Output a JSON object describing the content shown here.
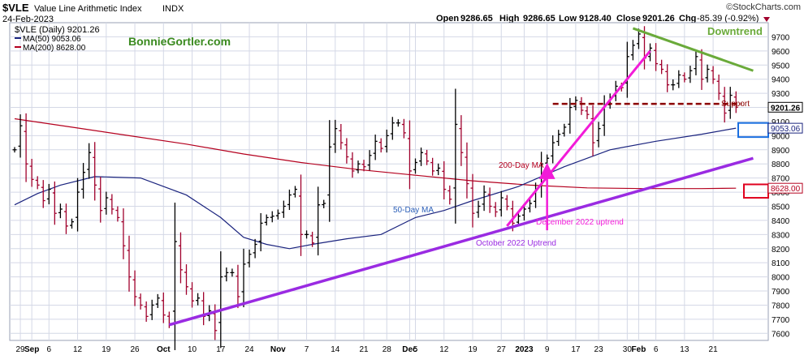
{
  "header": {
    "symbol": "$VLE",
    "name": "Value Line Arithmetic Index",
    "exchange": "INDX",
    "date": "24-Feb-2023",
    "brand": "©StockCharts.com",
    "ohlc": {
      "open_label": "Open",
      "open": "9286.65",
      "high_label": "High",
      "high": "9286.65",
      "low_label": "Low",
      "low": "9128.40",
      "close_label": "Close",
      "close": "9201.26",
      "chg_label": "Chg",
      "chg": "-85.39 (-0.92%)"
    }
  },
  "legend": {
    "price": "$VLE (Daily) 9201.26",
    "ma50": "MA(50) 9053.06",
    "ma200": "MA(200) 8628.00"
  },
  "watermark": "BonnieGortler.com",
  "annotations": {
    "downtrend": "Downtrend",
    "support": "Support",
    "ma200": "200-Day MA",
    "ma50": "50-Day MA",
    "dec_uptrend": "December 2022 uptrend",
    "oct_uptrend": "October 2022 Uptrend"
  },
  "price_tags": {
    "close": "9201.26",
    "ma50": "9053.06",
    "ma200": "8628.00"
  },
  "colors": {
    "background": "#ffffff",
    "grid": "#d4d8e6",
    "bar_up": "#000000",
    "bar_down": "#a0002c",
    "ma50": "#1a237e",
    "ma200": "#b4001e",
    "uptrend_oct": "#9a2be2",
    "uptrend_dec": "#f21bd8",
    "downtrend": "#6aaa3a",
    "support": "#8b0000",
    "watermark": "#3a8a1f",
    "box_blue": "#1a6fe0",
    "box_red": "#e0001e"
  },
  "chart_data": {
    "type": "ohlc",
    "y_axis": {
      "min": 7550,
      "max": 9800,
      "side": "right",
      "ticks": [
        "7600",
        "7700",
        "7800",
        "7900",
        "8000",
        "8100",
        "8200",
        "8300",
        "8400",
        "8500",
        "8600",
        "8700",
        "8800",
        "8900",
        "9000",
        "9100",
        "9200",
        "9300",
        "9400",
        "9500",
        "9600",
        "9700"
      ]
    },
    "x_axis": {
      "tick_labels": [
        {
          "label": "29",
          "bar": 1
        },
        {
          "label": "Sep",
          "bar": 3
        },
        {
          "label": "6",
          "bar": 6
        },
        {
          "label": "12",
          "bar": 11
        },
        {
          "label": "19",
          "bar": 16
        },
        {
          "label": "26",
          "bar": 21
        },
        {
          "label": "Oct",
          "bar": 26
        },
        {
          "label": "10",
          "bar": 31
        },
        {
          "label": "17",
          "bar": 36
        },
        {
          "label": "24",
          "bar": 41
        },
        {
          "label": "Nov",
          "bar": 46
        },
        {
          "label": "7",
          "bar": 51
        },
        {
          "label": "14",
          "bar": 56
        },
        {
          "label": "21",
          "bar": 61
        },
        {
          "label": "28",
          "bar": 65
        },
        {
          "label": "Dec",
          "bar": 69
        },
        {
          "label": "5",
          "bar": 70
        },
        {
          "label": "12",
          "bar": 75
        },
        {
          "label": "19",
          "bar": 80
        },
        {
          "label": "27",
          "bar": 85
        },
        {
          "label": "2023",
          "bar": 89
        },
        {
          "label": "9",
          "bar": 93
        },
        {
          "label": "17",
          "bar": 98
        },
        {
          "label": "23",
          "bar": 102
        },
        {
          "label": "30",
          "bar": 107
        },
        {
          "label": "Feb",
          "bar": 109
        },
        {
          "label": "6",
          "bar": 112
        },
        {
          "label": "13",
          "bar": 117
        },
        {
          "label": "21",
          "bar": 122
        }
      ]
    },
    "closes": [
      8900,
      9070,
      8800,
      8690,
      8650,
      8540,
      8620,
      8450,
      8480,
      8360,
      8390,
      8600,
      8740,
      8880,
      8650,
      8470,
      8560,
      8480,
      8420,
      8220,
      8000,
      7860,
      7800,
      7720,
      7800,
      7850,
      7730,
      7670,
      8250,
      8050,
      7930,
      7830,
      7850,
      7720,
      7760,
      7620,
      8000,
      8030,
      8030,
      7860,
      8090,
      8160,
      8230,
      8380,
      8420,
      8430,
      8450,
      8500,
      8580,
      8620,
      8300,
      8300,
      8240,
      8510,
      8520,
      8920,
      9050,
      8950,
      8850,
      8750,
      8800,
      8780,
      8860,
      8960,
      8910,
      9000,
      9090,
      9090,
      9020,
      8750,
      8810,
      8880,
      8820,
      8750,
      8770,
      8620,
      8550,
      9080,
      8880,
      8660,
      8450,
      8500,
      8600,
      8500,
      8460,
      8560,
      8500,
      8380,
      8430,
      8480,
      8520,
      8620,
      8800,
      8840,
      8950,
      9010,
      9060,
      9200,
      9250,
      9180,
      9150,
      8950,
      9050,
      9210,
      9270,
      9350,
      9340,
      9560,
      9640,
      9720,
      9550,
      9620,
      9510,
      9470,
      9360,
      9360,
      9430,
      9400,
      9460,
      9560,
      9400,
      9470,
      9400,
      9300,
      9160,
      9286,
      9201
    ],
    "ma50_points": [
      [
        0,
        8510
      ],
      [
        4,
        8590
      ],
      [
        8,
        8650
      ],
      [
        14,
        8710
      ],
      [
        22,
        8700
      ],
      [
        30,
        8580
      ],
      [
        36,
        8420
      ],
      [
        40,
        8280
      ],
      [
        44,
        8230
      ],
      [
        48,
        8200
      ],
      [
        52,
        8230
      ],
      [
        58,
        8270
      ],
      [
        64,
        8300
      ],
      [
        70,
        8420
      ],
      [
        75,
        8470
      ],
      [
        80,
        8540
      ],
      [
        88,
        8640
      ],
      [
        96,
        8780
      ],
      [
        104,
        8900
      ],
      [
        112,
        8960
      ],
      [
        120,
        9010
      ],
      [
        126,
        9053
      ]
    ],
    "ma200_points": [
      [
        0,
        9120
      ],
      [
        10,
        9060
      ],
      [
        20,
        9000
      ],
      [
        30,
        8940
      ],
      [
        40,
        8870
      ],
      [
        50,
        8810
      ],
      [
        60,
        8760
      ],
      [
        70,
        8720
      ],
      [
        80,
        8680
      ],
      [
        90,
        8650
      ],
      [
        100,
        8630
      ],
      [
        110,
        8625
      ],
      [
        120,
        8625
      ],
      [
        126,
        8628
      ]
    ],
    "trendlines": {
      "october_uptrend": [
        [
          27,
          7660
        ],
        [
          129,
          8840
        ]
      ],
      "december_uptrend": [
        [
          86,
          8360
        ],
        [
          111,
          9600
        ]
      ],
      "downtrend": [
        [
          108,
          9760
        ],
        [
          129,
          9460
        ]
      ],
      "support": {
        "y": 9225,
        "from_bar": 94,
        "to_bar": 127
      }
    },
    "arrows": {
      "dec_uptrend_arrow": {
        "bar": 93,
        "y_from": 8330,
        "y_to": 8750
      }
    },
    "boxes": {
      "ma50_box": {
        "y_low": 8990,
        "y_high": 9090
      },
      "ma200_box": {
        "y_low": 8560,
        "y_high": 8655
      }
    }
  }
}
